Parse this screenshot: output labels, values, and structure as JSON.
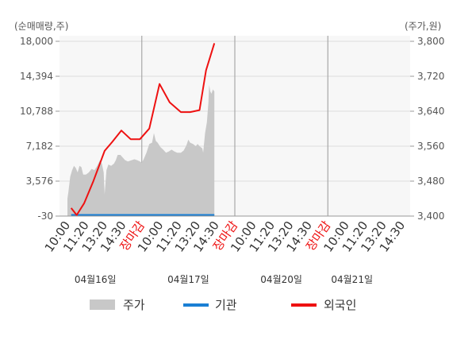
{
  "chart_data": {
    "type": "line",
    "left_axis": {
      "unit_label": "(순매매량,주)",
      "ticks": [
        "18,000",
        "14,394",
        "10,788",
        "7,182",
        "3,576",
        "-30"
      ],
      "range": [
        -30,
        18000
      ]
    },
    "right_axis": {
      "unit_label": "(주가,원)",
      "ticks": [
        "3,800",
        "3,720",
        "3,640",
        "3,560",
        "3,480",
        "3,400"
      ],
      "range": [
        3400,
        3800
      ]
    },
    "x_tick_labels": [
      "10:00",
      "11:20",
      "13:20",
      "14:30",
      "장마감",
      "10:00",
      "11:20",
      "13:20",
      "14:30",
      "장마감",
      "10:00",
      "11:20",
      "13:20",
      "14:30",
      "장마감",
      "10:00",
      "11:20",
      "13:20",
      "14:30"
    ],
    "market_close_label": "장마감",
    "day_labels": [
      "04월16일",
      "04월17일",
      "04월20일",
      "04월21일"
    ],
    "legend": [
      {
        "name": "주가",
        "color": "#c8c8c8"
      },
      {
        "name": "기관",
        "color": "#1a7fd4"
      },
      {
        "name": "외국인",
        "color": "#ee1111"
      }
    ],
    "price_area": [
      {
        "t": 0.0,
        "v": 3440
      },
      {
        "t": 0.05,
        "v": 3455
      },
      {
        "t": 0.15,
        "v": 3490
      },
      {
        "t": 0.25,
        "v": 3505
      },
      {
        "t": 0.35,
        "v": 3515
      },
      {
        "t": 0.45,
        "v": 3510
      },
      {
        "t": 0.55,
        "v": 3500
      },
      {
        "t": 0.65,
        "v": 3515
      },
      {
        "t": 0.75,
        "v": 3512
      },
      {
        "t": 0.85,
        "v": 3495
      },
      {
        "t": 1.0,
        "v": 3495
      },
      {
        "t": 1.15,
        "v": 3500
      },
      {
        "t": 1.3,
        "v": 3508
      },
      {
        "t": 1.45,
        "v": 3505
      },
      {
        "t": 1.6,
        "v": 3515
      },
      {
        "t": 1.75,
        "v": 3528
      },
      {
        "t": 1.85,
        "v": 3520
      },
      {
        "t": 1.95,
        "v": 3500
      },
      {
        "t": 2.0,
        "v": 3450
      },
      {
        "t": 2.1,
        "v": 3505
      },
      {
        "t": 2.2,
        "v": 3518
      },
      {
        "t": 2.35,
        "v": 3515
      },
      {
        "t": 2.5,
        "v": 3520
      },
      {
        "t": 2.6,
        "v": 3528
      },
      {
        "t": 2.7,
        "v": 3540
      },
      {
        "t": 2.85,
        "v": 3540
      },
      {
        "t": 2.95,
        "v": 3535
      },
      {
        "t": 3.1,
        "v": 3528
      },
      {
        "t": 3.25,
        "v": 3525
      },
      {
        "t": 3.45,
        "v": 3528
      },
      {
        "t": 3.6,
        "v": 3530
      },
      {
        "t": 3.75,
        "v": 3528
      },
      {
        "t": 3.9,
        "v": 3525
      },
      {
        "t": 4.0,
        "v": 3522
      },
      {
        "t": 4.1,
        "v": 3530
      },
      {
        "t": 4.25,
        "v": 3545
      },
      {
        "t": 4.4,
        "v": 3565
      },
      {
        "t": 4.55,
        "v": 3568
      },
      {
        "t": 4.65,
        "v": 3590
      },
      {
        "t": 4.75,
        "v": 3572
      },
      {
        "t": 4.85,
        "v": 3568
      },
      {
        "t": 5.0,
        "v": 3558
      },
      {
        "t": 5.15,
        "v": 3552
      },
      {
        "t": 5.3,
        "v": 3545
      },
      {
        "t": 5.45,
        "v": 3548
      },
      {
        "t": 5.6,
        "v": 3552
      },
      {
        "t": 5.75,
        "v": 3548
      },
      {
        "t": 5.9,
        "v": 3545
      },
      {
        "t": 6.0,
        "v": 3545
      },
      {
        "t": 6.1,
        "v": 3545
      },
      {
        "t": 6.25,
        "v": 3550
      },
      {
        "t": 6.4,
        "v": 3562
      },
      {
        "t": 6.5,
        "v": 3575
      },
      {
        "t": 6.6,
        "v": 3568
      },
      {
        "t": 6.75,
        "v": 3565
      },
      {
        "t": 6.9,
        "v": 3560
      },
      {
        "t": 7.0,
        "v": 3565
      },
      {
        "t": 7.1,
        "v": 3560
      },
      {
        "t": 7.25,
        "v": 3555
      },
      {
        "t": 7.3,
        "v": 3545
      },
      {
        "t": 7.4,
        "v": 3590
      },
      {
        "t": 7.5,
        "v": 3615
      },
      {
        "t": 7.58,
        "v": 3660
      },
      {
        "t": 7.62,
        "v": 3700
      },
      {
        "t": 7.68,
        "v": 3685
      },
      {
        "t": 7.75,
        "v": 3680
      },
      {
        "t": 7.82,
        "v": 3690
      },
      {
        "t": 7.9,
        "v": 3685
      }
    ],
    "institution_line": [
      {
        "t": 0.2,
        "v": -30
      },
      {
        "t": 7.9,
        "v": -30
      }
    ],
    "foreign_line": [
      {
        "t": 0.2,
        "v": 800
      },
      {
        "t": 0.5,
        "v": 80
      },
      {
        "t": 0.9,
        "v": 1300
      },
      {
        "t": 1.4,
        "v": 3600
      },
      {
        "t": 2.0,
        "v": 6700
      },
      {
        "t": 2.4,
        "v": 7600
      },
      {
        "t": 2.9,
        "v": 8800
      },
      {
        "t": 3.4,
        "v": 7900
      },
      {
        "t": 3.9,
        "v": 7900
      },
      {
        "t": 4.4,
        "v": 9000
      },
      {
        "t": 4.95,
        "v": 13600
      },
      {
        "t": 5.5,
        "v": 11700
      },
      {
        "t": 6.1,
        "v": 10700
      },
      {
        "t": 6.6,
        "v": 10700
      },
      {
        "t": 7.1,
        "v": 10900
      },
      {
        "t": 7.45,
        "v": 15000
      },
      {
        "t": 7.9,
        "v": 17800
      }
    ],
    "grid": true,
    "legend_position": "bottom"
  }
}
